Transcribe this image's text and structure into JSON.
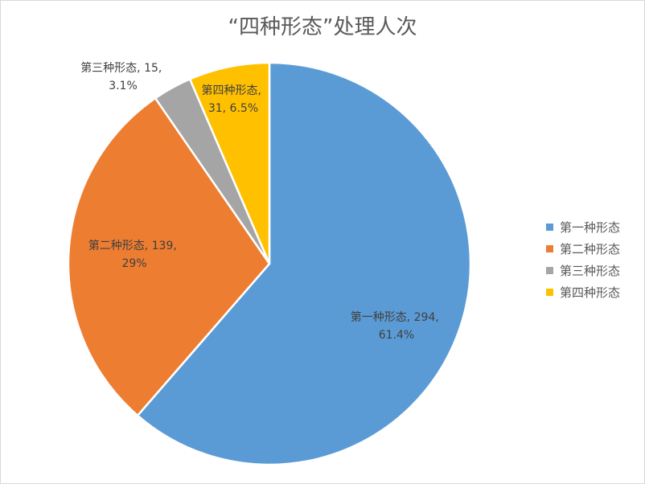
{
  "chart_data": {
    "type": "pie",
    "title": "“四种形态”处理人次",
    "categories": [
      "第一种形态",
      "第二种形态",
      "第三种形态",
      "第四种形态"
    ],
    "values": [
      294,
      139,
      15,
      31
    ],
    "percent_labels": [
      "61.4%",
      "29%",
      "3.1%",
      "6.5%"
    ],
    "data_labels": [
      [
        "第一种形态, 294,",
        "61.4%"
      ],
      [
        "第二种形态, 139,",
        "29%"
      ],
      [
        "第三种形态, 15,",
        "3.1%"
      ],
      [
        "第四种形态,",
        "31, 6.5%"
      ]
    ],
    "colors": [
      "#5b9bd5",
      "#ed7d31",
      "#a5a5a5",
      "#ffc000"
    ],
    "legend_position": "right",
    "start_angle_deg": 0,
    "direction": "clockwise"
  }
}
